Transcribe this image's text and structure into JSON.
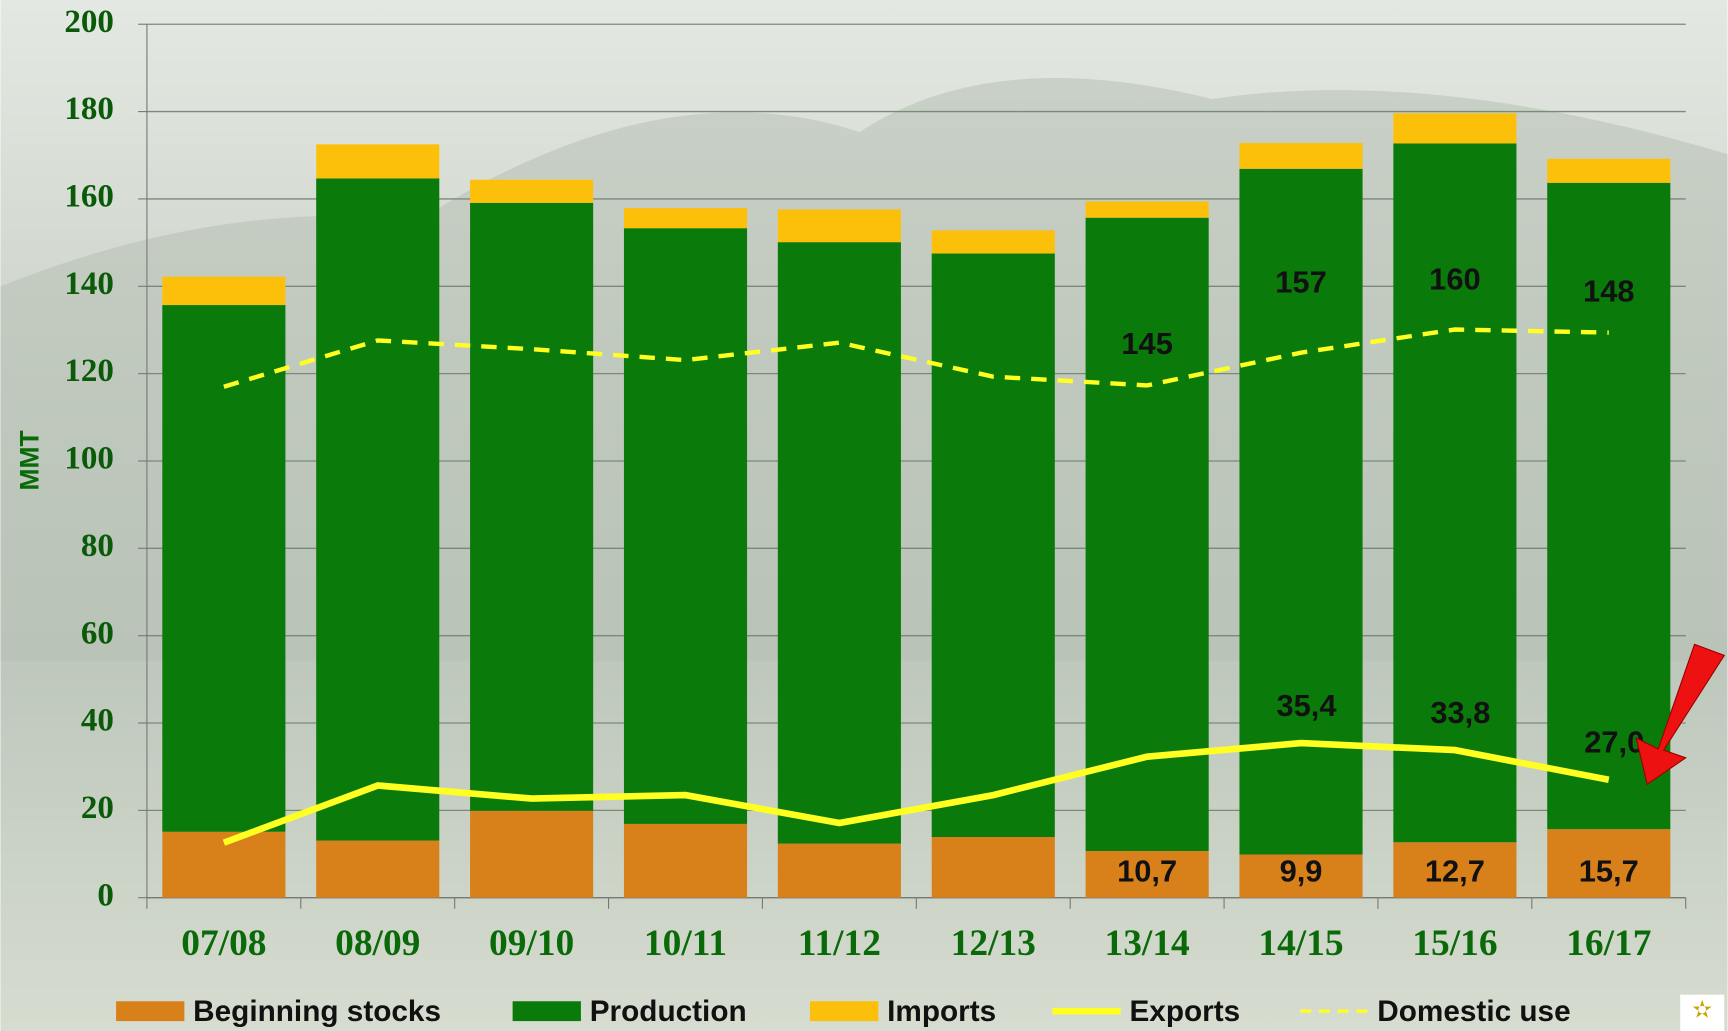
{
  "chart_data": {
    "type": "bar",
    "stacked": true,
    "y_label": "MMT",
    "categories": [
      "07/08",
      "08/09",
      "09/10",
      "10/11",
      "11/12",
      "12/13",
      "13/14",
      "14/15",
      "15/16",
      "16/17"
    ],
    "ylim": [
      0,
      200
    ],
    "yticks": [
      0,
      20,
      40,
      60,
      80,
      100,
      120,
      140,
      160,
      180,
      200
    ],
    "grid": true,
    "series": [
      {
        "name": "Beginning stocks",
        "type": "bar",
        "color": "#d8801a",
        "values": [
          15.1,
          13.1,
          19.9,
          16.9,
          12.4,
          13.9,
          10.7,
          9.9,
          12.7,
          15.7
        ],
        "value_labels": [
          null,
          null,
          null,
          null,
          null,
          null,
          "10,7",
          "9,9",
          "12,7",
          "15,7"
        ]
      },
      {
        "name": "Production",
        "type": "bar",
        "color": "#0a7a0a",
        "values": [
          120.6,
          151.6,
          139.2,
          136.4,
          137.7,
          133.6,
          145,
          157,
          160,
          148
        ],
        "value_labels": [
          null,
          null,
          null,
          null,
          null,
          null,
          "145",
          "157",
          "160",
          "148"
        ]
      },
      {
        "name": "Imports",
        "type": "bar",
        "color": "#fcc00a",
        "values": [
          6.5,
          7.8,
          5.3,
          4.6,
          7.5,
          5.3,
          3.7,
          5.9,
          6.9,
          5.5
        ]
      },
      {
        "name": "Exports",
        "type": "line",
        "color": "#ffff22",
        "dashed": false,
        "values": [
          12.6,
          25.7,
          22.7,
          23.5,
          17.1,
          23.5,
          32.3,
          35.4,
          33.8,
          27.0
        ],
        "value_labels": [
          null,
          null,
          null,
          null,
          null,
          null,
          null,
          "35,4",
          "33,8",
          "27,0"
        ]
      },
      {
        "name": "Domestic use",
        "type": "line",
        "color": "#ffff22",
        "dashed": true,
        "values": [
          117,
          127.6,
          125.6,
          123.1,
          127.1,
          119.3,
          117.3,
          124.8,
          130.1,
          129.4
        ]
      }
    ]
  }
}
